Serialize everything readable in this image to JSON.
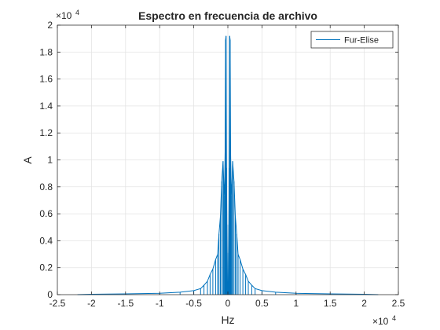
{
  "chart_data": {
    "type": "line",
    "title": "Espectro en frecuencia de archivo",
    "xlabel": "Hz",
    "ylabel": "A",
    "xlim": [
      -25000,
      25000
    ],
    "ylim": [
      0,
      20000
    ],
    "x_ticks": [
      -25000,
      -20000,
      -15000,
      -10000,
      -5000,
      0,
      5000,
      10000,
      15000,
      20000,
      25000
    ],
    "x_tick_labels": [
      "-2.5",
      "-2",
      "-1.5",
      "-1",
      "-0.5",
      "0",
      "0.5",
      "1",
      "1.5",
      "2",
      "2.5"
    ],
    "y_ticks": [
      0,
      2000,
      4000,
      6000,
      8000,
      10000,
      12000,
      14000,
      16000,
      18000,
      20000
    ],
    "y_tick_labels": [
      "0",
      "0.2",
      "0.4",
      "0.6",
      "0.8",
      "1",
      "1.2",
      "1.4",
      "1.6",
      "1.8",
      "2"
    ],
    "x_exponent": "×10",
    "x_exponent_power": "4",
    "y_exponent": "×10",
    "y_exponent_power": "4",
    "grid": true,
    "legend_position": "top-right",
    "series": [
      {
        "name": "Fur-Elise",
        "color": "#0072BD",
        "x": [
          -22050,
          -20000,
          -15000,
          -10000,
          -7000,
          -5000,
          -4000,
          -3500,
          -3000,
          -2600,
          -2200,
          -1800,
          -1500,
          -1300,
          -1100,
          -900,
          -700,
          -600,
          -500,
          -400,
          -330,
          -260,
          -200,
          -150,
          -100,
          -60,
          -30,
          0,
          30,
          60,
          100,
          150,
          200,
          260,
          330,
          400,
          500,
          600,
          700,
          900,
          1100,
          1300,
          1500,
          1800,
          2200,
          2600,
          3000,
          3500,
          4000,
          5000,
          7000,
          10000,
          15000,
          20000,
          22050
        ],
        "y": [
          0,
          30,
          60,
          100,
          180,
          300,
          450,
          700,
          1000,
          1500,
          1900,
          2600,
          3000,
          4500,
          5800,
          8400,
          9900,
          8200,
          7400,
          10600,
          18900,
          19200,
          9400,
          5200,
          3100,
          900,
          300,
          100,
          300,
          900,
          3100,
          5200,
          9400,
          19200,
          18900,
          10600,
          7400,
          8200,
          9900,
          8400,
          5800,
          4500,
          3000,
          2600,
          1900,
          1500,
          1000,
          700,
          450,
          300,
          180,
          100,
          60,
          30,
          0
        ]
      }
    ]
  }
}
